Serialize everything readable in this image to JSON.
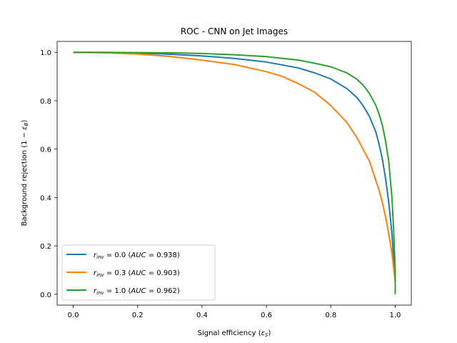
{
  "chart_data": {
    "type": "line",
    "title": "ROC - CNN on Jet Images",
    "xlabel": "Signal efficiency (εS)",
    "ylabel": "Background rejection (1 − εB)",
    "xlim": [
      -0.05,
      1.05
    ],
    "ylim": [
      -0.045,
      1.045
    ],
    "xticks": [
      0.0,
      0.2,
      0.4,
      0.6,
      0.8,
      1.0
    ],
    "yticks": [
      0.0,
      0.2,
      0.4,
      0.6,
      0.8,
      1.0
    ],
    "xtick_labels": [
      "0.0",
      "0.2",
      "0.4",
      "0.6",
      "0.8",
      "1.0"
    ],
    "ytick_labels": [
      "0.0",
      "0.2",
      "0.4",
      "0.6",
      "0.8",
      "1.0"
    ],
    "grid": false,
    "legend_position": "lower-left",
    "series": [
      {
        "name": "r_inv = 0.0 (AUC = 0.938)",
        "legend": {
          "var": "r",
          "sub": "inv",
          "val": " = 0.0 (",
          "auc": "AUC",
          "aucval": " = 0.938)"
        },
        "color": "#1f77b4",
        "x": [
          0.0,
          0.1,
          0.2,
          0.3,
          0.4,
          0.5,
          0.6,
          0.7,
          0.75,
          0.8,
          0.85,
          0.88,
          0.9,
          0.92,
          0.94,
          0.95,
          0.96,
          0.97,
          0.98,
          0.99,
          0.995,
          1.0,
          1.0
        ],
        "y": [
          1.0,
          0.999,
          0.997,
          0.992,
          0.985,
          0.975,
          0.96,
          0.935,
          0.915,
          0.89,
          0.85,
          0.815,
          0.78,
          0.735,
          0.67,
          0.62,
          0.56,
          0.48,
          0.38,
          0.25,
          0.15,
          0.05,
          0.0
        ]
      },
      {
        "name": "r_inv = 0.3 (AUC = 0.903)",
        "legend": {
          "var": "r",
          "sub": "inv",
          "val": " = 0.3 (",
          "auc": "AUC",
          "aucval": " = 0.903)"
        },
        "color": "#ff7f0e",
        "x": [
          0.0,
          0.1,
          0.2,
          0.3,
          0.4,
          0.5,
          0.6,
          0.65,
          0.7,
          0.75,
          0.8,
          0.85,
          0.88,
          0.9,
          0.92,
          0.94,
          0.95,
          0.96,
          0.97,
          0.98,
          0.99,
          0.995,
          1.0,
          1.0
        ],
        "y": [
          1.0,
          0.998,
          0.993,
          0.983,
          0.968,
          0.95,
          0.92,
          0.9,
          0.87,
          0.835,
          0.78,
          0.71,
          0.65,
          0.6,
          0.55,
          0.47,
          0.43,
          0.38,
          0.32,
          0.25,
          0.17,
          0.11,
          0.05,
          0.0
        ]
      },
      {
        "name": "r_inv = 1.0 (AUC = 0.962)",
        "legend": {
          "var": "r",
          "sub": "inv",
          "val": " = 1.0 (",
          "auc": "AUC",
          "aucval": " = 0.962)"
        },
        "color": "#2ca02c",
        "x": [
          0.0,
          0.1,
          0.2,
          0.3,
          0.4,
          0.5,
          0.6,
          0.7,
          0.75,
          0.8,
          0.85,
          0.88,
          0.9,
          0.92,
          0.94,
          0.95,
          0.96,
          0.97,
          0.98,
          0.99,
          0.995,
          1.0,
          1.0
        ],
        "y": [
          1.0,
          1.0,
          0.999,
          0.998,
          0.995,
          0.99,
          0.982,
          0.968,
          0.955,
          0.94,
          0.915,
          0.89,
          0.865,
          0.83,
          0.78,
          0.745,
          0.7,
          0.635,
          0.55,
          0.4,
          0.27,
          0.1,
          0.0
        ]
      }
    ]
  }
}
